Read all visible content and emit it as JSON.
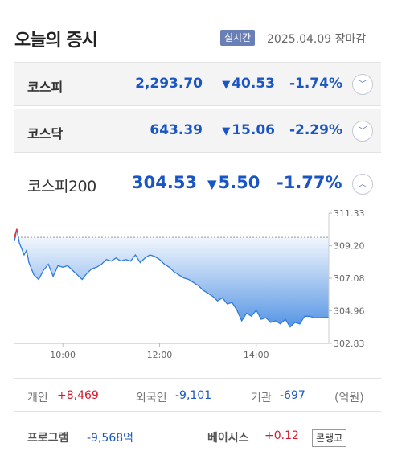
{
  "header": {
    "title": "오늘의 증시",
    "badge": "실시간",
    "date": "2025.04.09 장마감"
  },
  "indices": [
    {
      "name": "코스피",
      "value": "2,293.70",
      "change": "40.53",
      "rate": "-1.74%"
    },
    {
      "name": "코스닥",
      "value": "643.39",
      "change": "15.06",
      "rate": "-2.29%"
    }
  ],
  "kospi200": {
    "name": "코스피200",
    "value": "304.53",
    "change": "5.50",
    "rate": "-1.77%"
  },
  "icons": {
    "down_arrow": "▼",
    "expand": "﹀",
    "collapse": "︿"
  },
  "colors": {
    "down": "#1a55c4",
    "up": "#d6182a",
    "badge": "#6a7fb5"
  },
  "chart_data": {
    "type": "area",
    "ylim": [
      302.83,
      311.33
    ],
    "y_ticks": [
      "311.33",
      "309.20",
      "307.08",
      "304.96",
      "302.83"
    ],
    "x_ticks": [
      "10:00",
      "12:00",
      "14:00"
    ],
    "x_tick_times": [
      10,
      12,
      14
    ],
    "x_range": [
      9,
      15.5
    ],
    "reference": 309.75,
    "x": [
      9.0,
      9.05,
      9.1,
      9.15,
      9.2,
      9.25,
      9.3,
      9.4,
      9.5,
      9.6,
      9.7,
      9.8,
      9.9,
      10.0,
      10.1,
      10.2,
      10.3,
      10.4,
      10.5,
      10.6,
      10.7,
      10.8,
      10.9,
      11.0,
      11.1,
      11.2,
      11.3,
      11.4,
      11.5,
      11.6,
      11.7,
      11.8,
      11.9,
      12.0,
      12.1,
      12.2,
      12.3,
      12.4,
      12.5,
      12.6,
      12.7,
      12.8,
      12.9,
      13.0,
      13.1,
      13.2,
      13.3,
      13.4,
      13.5,
      13.6,
      13.7,
      13.8,
      13.9,
      14.0,
      14.1,
      14.2,
      14.3,
      14.4,
      14.5,
      14.6,
      14.7,
      14.8,
      14.9,
      15.0,
      15.1,
      15.2,
      15.3,
      15.5
    ],
    "y": [
      309.5,
      310.3,
      309.4,
      309.0,
      308.6,
      308.9,
      308.1,
      307.3,
      307.0,
      307.6,
      308.0,
      307.2,
      307.9,
      307.8,
      307.9,
      307.6,
      307.3,
      307.0,
      307.4,
      307.7,
      307.8,
      308.0,
      308.3,
      308.2,
      308.4,
      308.2,
      308.3,
      308.2,
      308.6,
      308.1,
      308.4,
      308.6,
      308.5,
      308.3,
      308.0,
      307.8,
      307.5,
      307.3,
      307.1,
      307.0,
      306.8,
      306.6,
      306.3,
      306.1,
      305.9,
      305.6,
      305.8,
      305.4,
      305.5,
      305.0,
      304.3,
      304.8,
      304.6,
      305.0,
      304.4,
      304.5,
      304.2,
      304.3,
      304.1,
      304.4,
      303.9,
      304.2,
      304.1,
      304.6,
      304.6,
      304.5,
      304.5,
      304.53
    ]
  },
  "investors": {
    "individual_label": "개인",
    "individual_value": "+8,469",
    "foreign_label": "외국인",
    "foreign_value": "-9,101",
    "institution_label": "기관",
    "institution_value": "-697",
    "unit": "(억원)"
  },
  "program": {
    "label": "프로그램",
    "value": "-9,568억",
    "basis_label": "베이시스",
    "basis_value": "+0.12",
    "contango": "콘탱고"
  }
}
